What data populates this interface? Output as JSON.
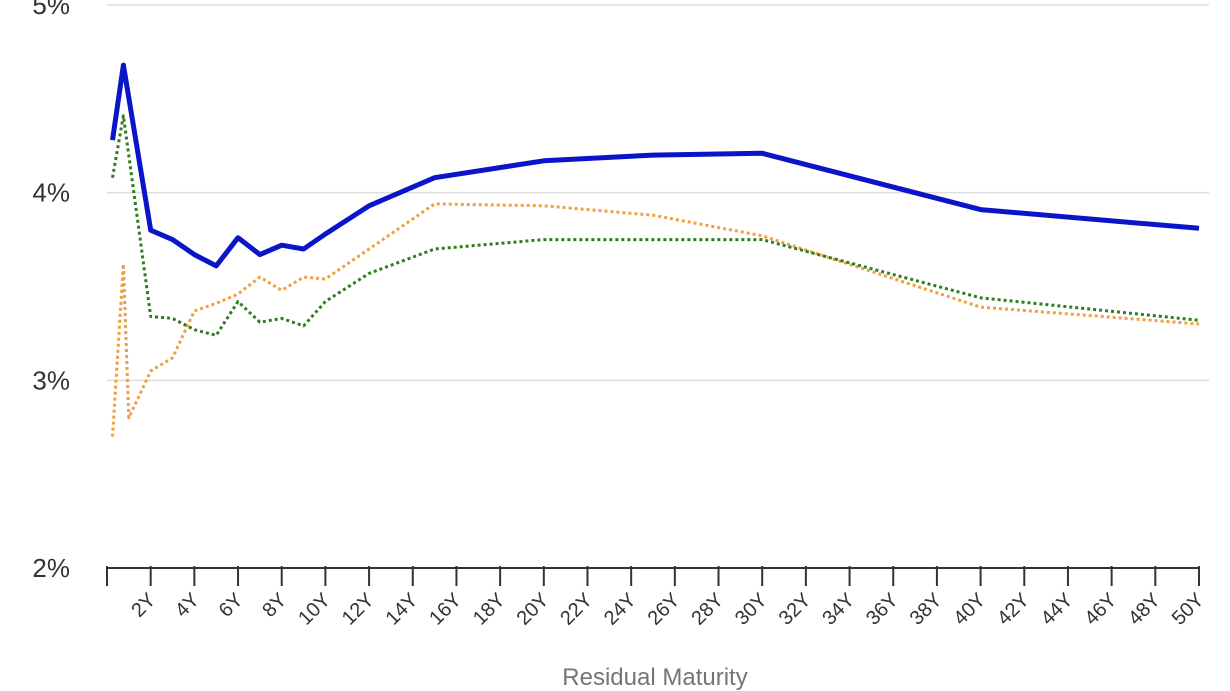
{
  "chart_data": {
    "type": "line",
    "title": "",
    "xlabel": "Residual Maturity",
    "ylabel": "",
    "xlim": [
      0,
      50
    ],
    "ylim": [
      2,
      5
    ],
    "yticks": [
      2,
      3,
      4,
      5
    ],
    "ytick_labels": [
      "2%",
      "3%",
      "4%",
      "5%"
    ],
    "xticks": [
      2,
      4,
      6,
      8,
      10,
      12,
      14,
      16,
      18,
      20,
      22,
      24,
      26,
      28,
      30,
      32,
      34,
      36,
      38,
      40,
      42,
      44,
      46,
      48,
      50
    ],
    "xtick_labels": [
      "2Y",
      "4Y",
      "6Y",
      "8Y",
      "10Y",
      "12Y",
      "14Y",
      "16Y",
      "18Y",
      "20Y",
      "22Y",
      "24Y",
      "26Y",
      "28Y",
      "30Y",
      "32Y",
      "34Y",
      "36Y",
      "38Y",
      "40Y",
      "42Y",
      "44Y",
      "46Y",
      "48Y",
      "50Y"
    ],
    "grid": true,
    "legend": "none",
    "series": [
      {
        "color": "#0a14c8",
        "style": "solid",
        "x": [
          0.25,
          0.75,
          2,
          3,
          4,
          5,
          6,
          7,
          8,
          9,
          10,
          12,
          15,
          20,
          25,
          30,
          40,
          50
        ],
        "y": [
          4.28,
          4.68,
          3.8,
          3.75,
          3.67,
          3.61,
          3.76,
          3.67,
          3.72,
          3.7,
          3.78,
          3.93,
          4.08,
          4.17,
          4.2,
          4.21,
          3.91,
          3.81
        ]
      },
      {
        "color": "#f0a040",
        "style": "dotted",
        "x": [
          0.25,
          0.75,
          1,
          2,
          3,
          4,
          5,
          6,
          7,
          8,
          9,
          10,
          12,
          15,
          20,
          25,
          30,
          40,
          50
        ],
        "y": [
          2.7,
          3.62,
          2.8,
          3.05,
          3.12,
          3.37,
          3.41,
          3.46,
          3.55,
          3.48,
          3.55,
          3.54,
          3.7,
          3.94,
          3.93,
          3.88,
          3.77,
          3.39,
          3.3
        ]
      },
      {
        "color": "#2e7d1e",
        "style": "dotted",
        "x": [
          0.25,
          0.75,
          2,
          3,
          4,
          5,
          6,
          7,
          8,
          9,
          10,
          12,
          15,
          20,
          25,
          30,
          40,
          50
        ],
        "y": [
          4.08,
          4.41,
          3.34,
          3.33,
          3.27,
          3.24,
          3.42,
          3.31,
          3.33,
          3.29,
          3.42,
          3.57,
          3.7,
          3.75,
          3.75,
          3.75,
          3.44,
          3.32
        ]
      }
    ]
  }
}
